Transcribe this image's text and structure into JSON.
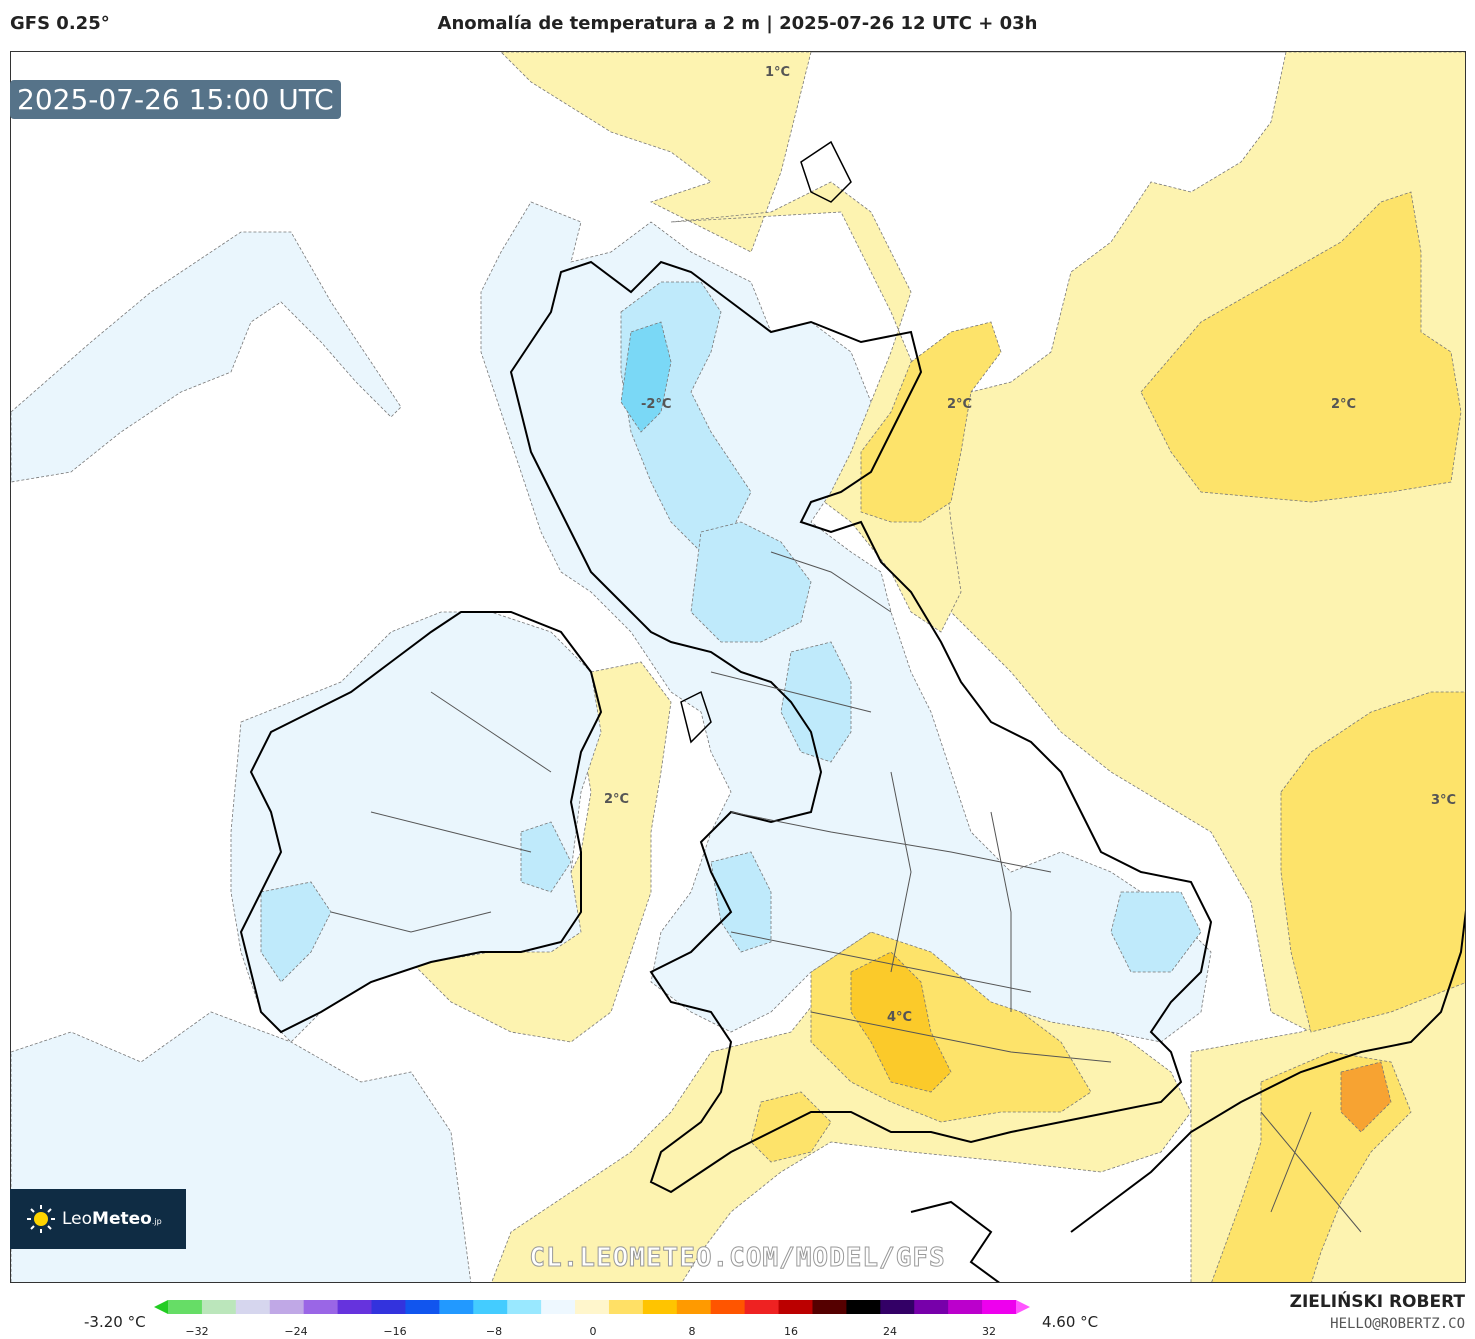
{
  "header": {
    "model": "GFS 0.25°",
    "title": "Anomalía de temperatura a 2 m | 2025-07-26 12 UTC + 03h"
  },
  "map": {
    "valid_time": "2025-07-26 15:00 UTC",
    "region": "British Isles",
    "contour_labels": [
      {
        "text": "1°C"
      },
      {
        "text": "-2°C"
      },
      {
        "text": "2°C"
      },
      {
        "text": "2°C"
      },
      {
        "text": "2°C"
      },
      {
        "text": "3°C"
      },
      {
        "text": "4°C"
      }
    ],
    "watermark": "CL.LEOMETEO.COM/MODEL/GFS"
  },
  "logo": {
    "name_light": "Leo",
    "name_bold": "Meteo",
    "suffix": ".jp"
  },
  "colorbar": {
    "min_label": "-3.20 °C",
    "max_label": "4.60 °C",
    "ticks": [
      "−32",
      "−24",
      "−16",
      "−8",
      "0",
      "8",
      "16",
      "24",
      "32"
    ],
    "colors": [
      "#22cc22",
      "#66dd66",
      "#bbe6bb",
      "#d6d6ee",
      "#c0a8e6",
      "#9a66e6",
      "#6633dd",
      "#3333dd",
      "#1155ee",
      "#2299ff",
      "#44ccff",
      "#99e8ff",
      "#eef8ff",
      "#fff6cc",
      "#ffe066",
      "#ffc400",
      "#ff9a00",
      "#ff5500",
      "#ee2222",
      "#bb0000",
      "#550000",
      "#000000",
      "#330066",
      "#7700aa",
      "#bb00cc",
      "#ee00ee",
      "#ff55ff"
    ]
  },
  "credits": {
    "author": "ZIELIŃSKI ROBERT",
    "email": "HELLO@ROBERTZ.CO"
  }
}
